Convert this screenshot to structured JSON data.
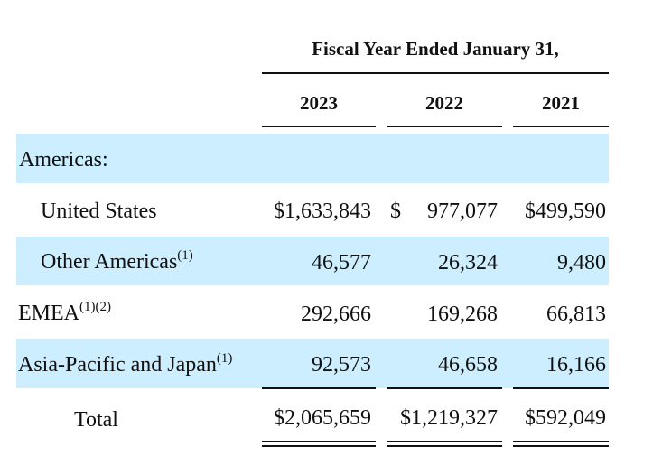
{
  "header": {
    "title": "Fiscal Year Ended January 31,",
    "years": [
      "2023",
      "2022",
      "2021"
    ]
  },
  "rows": {
    "americas": {
      "label": "Americas:"
    },
    "united_states": {
      "label": "United States",
      "v2023": "$1,633,843",
      "dollar2022": "$",
      "v2022": "977,077",
      "v2021": "$499,590"
    },
    "other_americas": {
      "label": "Other Americas",
      "note": "(1)",
      "v2023": "46,577",
      "v2022": "26,324",
      "v2021": "9,480"
    },
    "emea": {
      "label": "EMEA",
      "note": "(1)(2)",
      "v2023": "292,666",
      "v2022": "169,268",
      "v2021": "66,813"
    },
    "apj": {
      "label": "Asia-Pacific and Japan",
      "note": "(1)",
      "v2023": "92,573",
      "v2022": "46,658",
      "v2021": "16,166"
    },
    "total": {
      "label": "Total",
      "v2023": "$2,065,659",
      "v2022": "$1,219,327",
      "v2021": "$592,049"
    }
  },
  "colors": {
    "band": "#cceeff",
    "text": "#111111"
  }
}
